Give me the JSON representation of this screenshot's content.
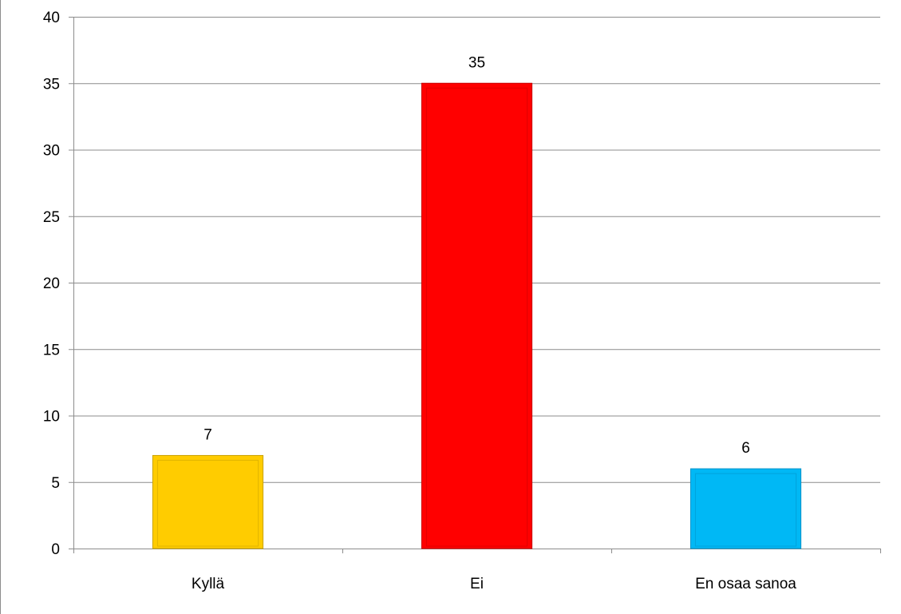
{
  "chart_data": {
    "type": "bar",
    "categories": [
      "Kyllä",
      "Ei",
      "En osaa sanoa"
    ],
    "values": [
      7,
      35,
      6
    ],
    "data_labels": [
      "7",
      "35",
      "6"
    ],
    "colors": [
      "#FFCC00",
      "#FF0000",
      "#00B8F5"
    ],
    "edge_colors": [
      "#C9A200",
      "#C80000",
      "#0092C8"
    ],
    "ylim": [
      0,
      40
    ],
    "yticks": [
      0,
      5,
      10,
      15,
      20,
      25,
      30,
      35,
      40
    ],
    "ytick_labels": [
      "0",
      "5",
      "10",
      "15",
      "20",
      "25",
      "30",
      "35",
      "40"
    ],
    "grid": true,
    "grid_color": "#8C8C8C",
    "legend": false,
    "title": "",
    "xlabel": "",
    "ylabel": ""
  }
}
